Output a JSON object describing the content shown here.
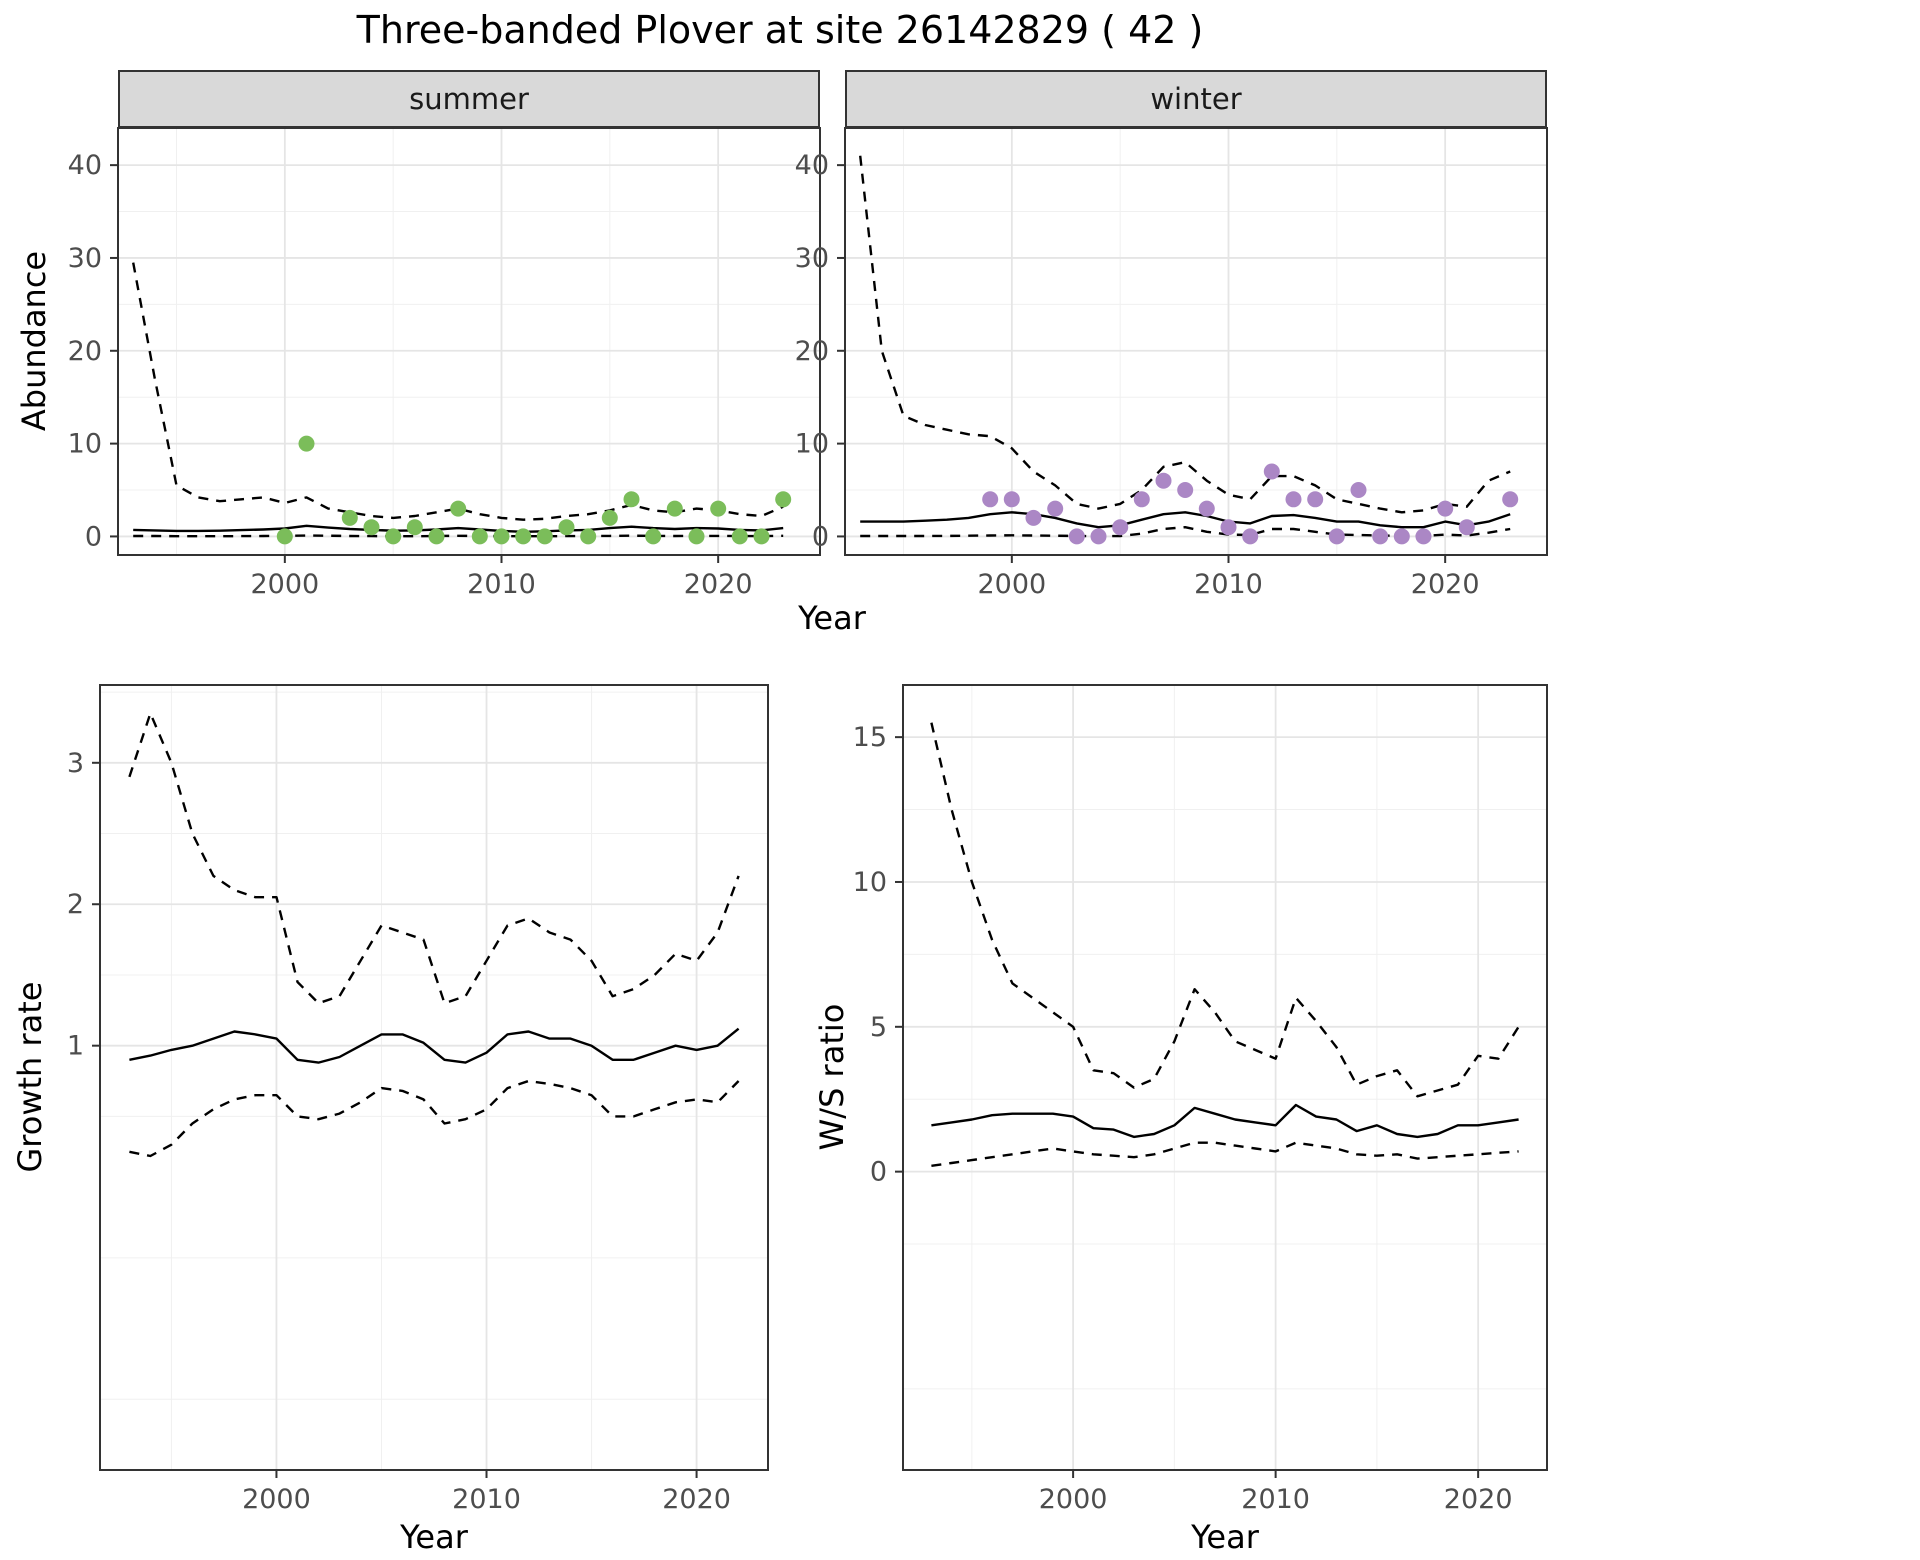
{
  "title": "Three-banded Plover at site 26142829 ( 42 )",
  "facets": {
    "summer_label": "summer",
    "winter_label": "winter"
  },
  "axis_labels": {
    "abundance": "Abundance",
    "year": "Year",
    "growth_rate": "Growth rate",
    "ws_ratio": "W/S ratio"
  },
  "colors": {
    "summer_points": "#7bbd5a",
    "winter_points": "#ab87c5",
    "line": "#000000",
    "strip_fill": "#d9d9d9",
    "panel_border": "#333333",
    "grid_major": "#e5e5e5",
    "grid_minor": "#f0f0f0",
    "tick_text": "#4d4d4d"
  },
  "chart_data": [
    {
      "type": "line",
      "facet": "summer",
      "xlabel": "Year",
      "ylabel": "Abundance",
      "xlim": [
        1992.3,
        2024.7
      ],
      "ylim": [
        -2,
        44
      ],
      "xticks": [
        2000,
        2010,
        2020
      ],
      "yticks": [
        0,
        10,
        20,
        30,
        40
      ],
      "grid": true,
      "legend": "none",
      "x": [
        1993,
        1994,
        1995,
        1996,
        1997,
        1998,
        1999,
        2000,
        2001,
        2002,
        2003,
        2004,
        2005,
        2006,
        2007,
        2008,
        2009,
        2010,
        2011,
        2012,
        2013,
        2014,
        2015,
        2016,
        2017,
        2018,
        2019,
        2020,
        2021,
        2022,
        2023
      ],
      "series": [
        {
          "name": "upper_ci",
          "style": "dashed",
          "values": [
            29.5,
            17,
            5.5,
            4.2,
            3.8,
            4.0,
            4.2,
            3.6,
            4.2,
            3.0,
            2.6,
            2.2,
            2.0,
            2.2,
            2.6,
            3.0,
            2.4,
            2.0,
            1.8,
            1.9,
            2.2,
            2.4,
            2.8,
            3.4,
            2.8,
            2.6,
            3.0,
            2.8,
            2.4,
            2.2,
            3.2
          ]
        },
        {
          "name": "mean",
          "style": "solid",
          "values": [
            0.7,
            0.65,
            0.6,
            0.6,
            0.62,
            0.68,
            0.75,
            0.85,
            1.15,
            0.95,
            0.8,
            0.7,
            0.62,
            0.65,
            0.75,
            0.9,
            0.75,
            0.6,
            0.5,
            0.55,
            0.65,
            0.7,
            0.9,
            1.05,
            0.9,
            0.8,
            0.9,
            0.85,
            0.7,
            0.65,
            0.9
          ]
        },
        {
          "name": "lower_ci",
          "style": "dashed",
          "values": [
            0.05,
            0.05,
            0.03,
            0.03,
            0.03,
            0.04,
            0.05,
            0.06,
            0.1,
            0.08,
            0.05,
            0.04,
            0.03,
            0.03,
            0.05,
            0.07,
            0.05,
            0.03,
            0.02,
            0.03,
            0.04,
            0.05,
            0.06,
            0.08,
            0.06,
            0.05,
            0.06,
            0.06,
            0.04,
            0.04,
            0.07
          ]
        }
      ],
      "points": {
        "color_key": "summer_points",
        "x": [
          2000,
          2001,
          2003,
          2004,
          2005,
          2006,
          2007,
          2008,
          2009,
          2010,
          2011,
          2012,
          2013,
          2014,
          2015,
          2016,
          2017,
          2018,
          2019,
          2020,
          2021,
          2022,
          2023
        ],
        "y": [
          0,
          10,
          2,
          1,
          0,
          1,
          0,
          3,
          0,
          0,
          0,
          0,
          1,
          0,
          2,
          4,
          0,
          3,
          0,
          3,
          0,
          0,
          4
        ]
      }
    },
    {
      "type": "line",
      "facet": "winter",
      "xlabel": "Year",
      "ylabel": "Abundance",
      "xlim": [
        1992.3,
        2024.7
      ],
      "ylim": [
        -2,
        44
      ],
      "xticks": [
        2000,
        2010,
        2020
      ],
      "yticks": [
        0,
        10,
        20,
        30,
        40
      ],
      "grid": true,
      "legend": "none",
      "x": [
        1993,
        1994,
        1995,
        1996,
        1997,
        1998,
        1999,
        2000,
        2001,
        2002,
        2003,
        2004,
        2005,
        2006,
        2007,
        2008,
        2009,
        2010,
        2011,
        2012,
        2013,
        2014,
        2015,
        2016,
        2017,
        2018,
        2019,
        2020,
        2021,
        2022,
        2023
      ],
      "series": [
        {
          "name": "upper_ci",
          "style": "dashed",
          "values": [
            41,
            20,
            13,
            12,
            11.5,
            11,
            10.8,
            9.5,
            7,
            5.5,
            3.5,
            3.0,
            3.5,
            5,
            7.5,
            8,
            6,
            4.5,
            4,
            6.5,
            6.5,
            5.5,
            4,
            3.5,
            3,
            2.6,
            2.8,
            3.5,
            3.2,
            6,
            7
          ]
        },
        {
          "name": "mean",
          "style": "solid",
          "values": [
            1.6,
            1.6,
            1.6,
            1.7,
            1.8,
            2.0,
            2.4,
            2.6,
            2.4,
            2.0,
            1.4,
            1.0,
            1.2,
            1.8,
            2.4,
            2.6,
            2.2,
            1.6,
            1.4,
            2.2,
            2.3,
            2.0,
            1.6,
            1.6,
            1.2,
            1.0,
            1.0,
            1.6,
            1.2,
            1.6,
            2.4
          ]
        },
        {
          "name": "lower_ci",
          "style": "dashed",
          "values": [
            0.05,
            0.05,
            0.05,
            0.05,
            0.06,
            0.08,
            0.1,
            0.12,
            0.1,
            0.08,
            0.05,
            0.04,
            0.05,
            0.3,
            0.8,
            1.0,
            0.5,
            0.2,
            0.15,
            0.8,
            0.8,
            0.5,
            0.2,
            0.15,
            0.1,
            0.06,
            0.06,
            0.2,
            0.1,
            0.4,
            0.8
          ]
        }
      ],
      "points": {
        "color_key": "winter_points",
        "x": [
          1999,
          2000,
          2001,
          2002,
          2003,
          2004,
          2005,
          2006,
          2007,
          2008,
          2009,
          2010,
          2011,
          2012,
          2013,
          2014,
          2015,
          2016,
          2017,
          2018,
          2019,
          2020,
          2021,
          2023
        ],
        "y": [
          4,
          4,
          2,
          3,
          0,
          0,
          1,
          4,
          6,
          5,
          3,
          1,
          0,
          7,
          4,
          4,
          0,
          5,
          0,
          0,
          0,
          3,
          1,
          4
        ]
      }
    },
    {
      "type": "line",
      "facet": "none",
      "xlabel": "Year",
      "ylabel": "Growth rate",
      "xlim": [
        1991.6,
        2023.4
      ],
      "ylim": [
        -2.0,
        3.55
      ],
      "xticks": [
        2000,
        2010,
        2020
      ],
      "yticks": [
        1,
        2,
        3
      ],
      "grid": true,
      "legend": "none",
      "x": [
        1993,
        1994,
        1995,
        1996,
        1997,
        1998,
        1999,
        2000,
        2001,
        2002,
        2003,
        2004,
        2005,
        2006,
        2007,
        2008,
        2009,
        2010,
        2011,
        2012,
        2013,
        2014,
        2015,
        2016,
        2017,
        2018,
        2019,
        2020,
        2021,
        2022
      ],
      "series": [
        {
          "name": "upper_ci",
          "style": "dashed",
          "values": [
            2.9,
            3.35,
            3.0,
            2.5,
            2.2,
            2.1,
            2.05,
            2.05,
            1.45,
            1.3,
            1.35,
            1.6,
            1.85,
            1.8,
            1.75,
            1.3,
            1.35,
            1.6,
            1.85,
            1.9,
            1.8,
            1.75,
            1.6,
            1.35,
            1.4,
            1.5,
            1.65,
            1.6,
            1.8,
            2.2
          ]
        },
        {
          "name": "mean",
          "style": "solid",
          "values": [
            0.9,
            0.93,
            0.97,
            1.0,
            1.05,
            1.1,
            1.08,
            1.05,
            0.9,
            0.88,
            0.92,
            1.0,
            1.08,
            1.08,
            1.02,
            0.9,
            0.88,
            0.95,
            1.08,
            1.1,
            1.05,
            1.05,
            1.0,
            0.9,
            0.9,
            0.95,
            1.0,
            0.97,
            1.0,
            1.12
          ]
        },
        {
          "name": "lower_ci",
          "style": "dashed",
          "values": [
            0.25,
            0.22,
            0.3,
            0.45,
            0.55,
            0.62,
            0.65,
            0.65,
            0.5,
            0.48,
            0.52,
            0.6,
            0.7,
            0.68,
            0.62,
            0.45,
            0.48,
            0.55,
            0.7,
            0.75,
            0.73,
            0.7,
            0.65,
            0.5,
            0.5,
            0.55,
            0.6,
            0.62,
            0.6,
            0.75
          ]
        }
      ],
      "points": {
        "color_key": "none",
        "x": [],
        "y": []
      }
    },
    {
      "type": "line",
      "facet": "none",
      "xlabel": "Year",
      "ylabel": "W/S ratio",
      "xlim": [
        1991.6,
        2023.4
      ],
      "ylim": [
        -10.3,
        16.8
      ],
      "xticks": [
        2000,
        2010,
        2020
      ],
      "yticks": [
        0,
        5,
        10,
        15
      ],
      "grid": true,
      "legend": "none",
      "x": [
        1993,
        1994,
        1995,
        1996,
        1997,
        1998,
        1999,
        2000,
        2001,
        2002,
        2003,
        2004,
        2005,
        2006,
        2007,
        2008,
        2009,
        2010,
        2011,
        2012,
        2013,
        2014,
        2015,
        2016,
        2017,
        2018,
        2019,
        2020,
        2021,
        2022
      ],
      "series": [
        {
          "name": "upper_ci",
          "style": "dashed",
          "values": [
            15.5,
            12.5,
            10,
            8,
            6.5,
            6.0,
            5.5,
            5.0,
            3.5,
            3.4,
            2.9,
            3.2,
            4.5,
            6.3,
            5.5,
            4.5,
            4.2,
            3.9,
            6.0,
            5.2,
            4.3,
            3.0,
            3.3,
            3.5,
            2.6,
            2.8,
            3.0,
            4.0,
            3.9,
            5.0
          ]
        },
        {
          "name": "mean",
          "style": "solid",
          "values": [
            1.6,
            1.7,
            1.8,
            1.95,
            2.0,
            2.0,
            2.0,
            1.9,
            1.5,
            1.45,
            1.2,
            1.3,
            1.6,
            2.2,
            2.0,
            1.8,
            1.7,
            1.6,
            2.3,
            1.9,
            1.8,
            1.4,
            1.6,
            1.3,
            1.2,
            1.3,
            1.6,
            1.6,
            1.7,
            1.8
          ]
        },
        {
          "name": "lower_ci",
          "style": "dashed",
          "values": [
            0.2,
            0.3,
            0.4,
            0.5,
            0.6,
            0.7,
            0.8,
            0.7,
            0.6,
            0.55,
            0.5,
            0.6,
            0.8,
            1.0,
            1.0,
            0.9,
            0.8,
            0.7,
            1.0,
            0.9,
            0.8,
            0.6,
            0.55,
            0.6,
            0.45,
            0.5,
            0.55,
            0.6,
            0.65,
            0.7
          ]
        }
      ],
      "points": {
        "color_key": "none",
        "x": [],
        "y": []
      }
    }
  ]
}
